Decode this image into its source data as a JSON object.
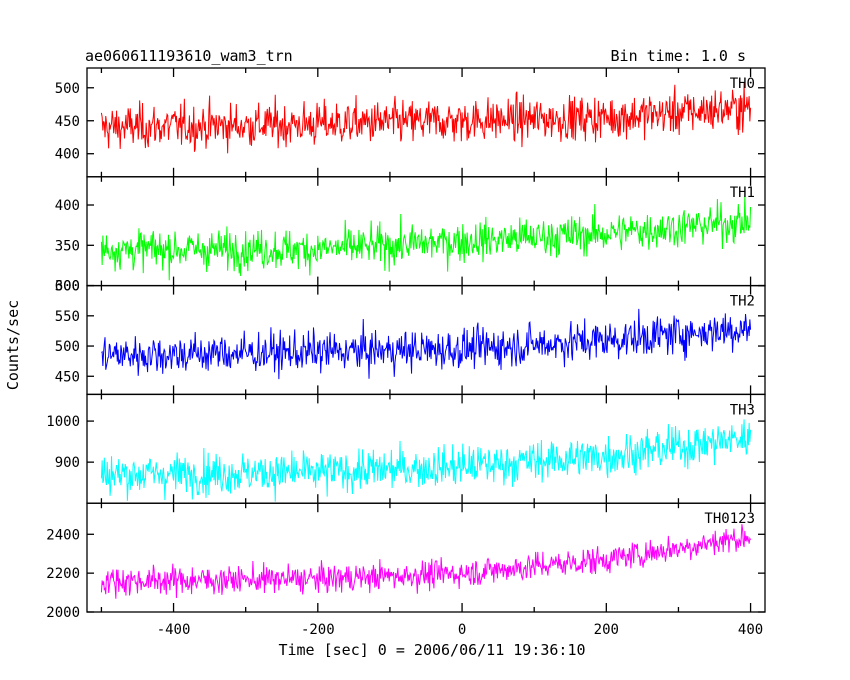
{
  "chart_data": {
    "type": "line",
    "title": "ae060611193610_wam3_trn",
    "subtitle": "Bin time: 1.0 s",
    "xlabel": "Time [sec] 0 = 2006/06/11 19:36:10",
    "ylabel": "Counts/sec",
    "xlim": [
      -520,
      420
    ],
    "xticks": [
      "-400",
      "-200",
      "0",
      "200",
      "400"
    ],
    "x_start": -500,
    "x_end": 400,
    "grid": false,
    "legend": "none",
    "panels": [
      {
        "name": "TH0",
        "color": "#ff0000",
        "ylim": [
          365,
          530
        ],
        "yticks": [
          "400",
          "450",
          "500"
        ],
        "trend": [
          [
            -500,
            440
          ],
          [
            -200,
            445
          ],
          [
            0,
            450
          ],
          [
            200,
            455
          ],
          [
            400,
            470
          ]
        ],
        "noise": 30
      },
      {
        "name": "TH1",
        "color": "#00ff00",
        "ylim": [
          300,
          435
        ],
        "yticks": [
          "300",
          "350",
          "400"
        ],
        "trend": [
          [
            -500,
            345
          ],
          [
            -200,
            345
          ],
          [
            0,
            355
          ],
          [
            200,
            365
          ],
          [
            400,
            380
          ]
        ],
        "noise": 22
      },
      {
        "name": "TH2",
        "color": "#0000ff",
        "ylim": [
          420,
          600
        ],
        "yticks": [
          "450",
          "500",
          "550",
          "600"
        ],
        "trend": [
          [
            -500,
            485
          ],
          [
            -200,
            490
          ],
          [
            0,
            495
          ],
          [
            200,
            510
          ],
          [
            400,
            530
          ]
        ],
        "noise": 30
      },
      {
        "name": "TH3",
        "color": "#00ffff",
        "ylim": [
          800,
          1065
        ],
        "yticks": [
          "900",
          "1000"
        ],
        "trend": [
          [
            -500,
            870
          ],
          [
            -200,
            875
          ],
          [
            0,
            890
          ],
          [
            200,
            915
          ],
          [
            400,
            960
          ]
        ],
        "noise": 45
      },
      {
        "name": "TH0123",
        "color": "#ff00ff",
        "ylim": [
          2000,
          2560
        ],
        "yticks": [
          "2000",
          "2200",
          "2400"
        ],
        "trend": [
          [
            -500,
            2160
          ],
          [
            -200,
            2170
          ],
          [
            0,
            2200
          ],
          [
            200,
            2270
          ],
          [
            400,
            2390
          ]
        ],
        "noise": 65
      }
    ]
  }
}
